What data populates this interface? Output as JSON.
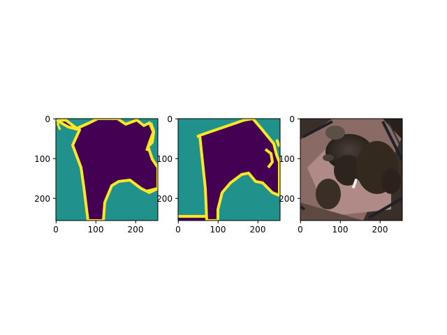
{
  "figure": {
    "panels": [
      {
        "id": "panel-1",
        "content": "segmentation mask (prediction)",
        "xticks": [
          "0",
          "100",
          "200"
        ],
        "yticks": [
          "0",
          "100",
          "200"
        ]
      },
      {
        "id": "panel-2",
        "content": "segmentation mask (ground truth)",
        "xticks": [
          "0",
          "100",
          "200"
        ],
        "yticks": [
          "0",
          "100",
          "200"
        ]
      },
      {
        "id": "panel-3",
        "content": "rotated photo of a dark long-haired dog lying on a pink surface",
        "xticks": [
          "0",
          "100",
          "200"
        ],
        "yticks": [
          "0",
          "100",
          "200"
        ]
      }
    ]
  },
  "colors": {
    "foreground": "#440154",
    "background": "#21918c",
    "boundary": "#fde725"
  }
}
